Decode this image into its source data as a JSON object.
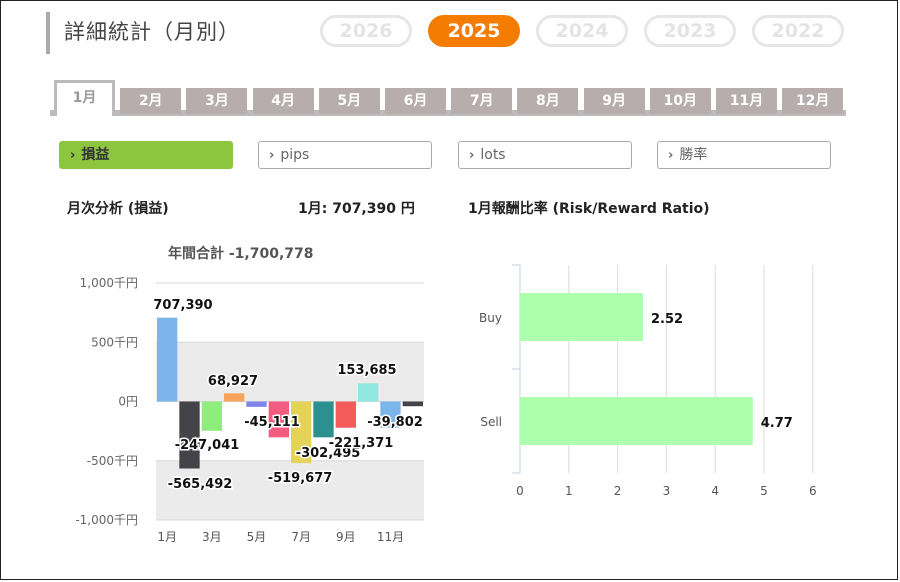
{
  "page": {
    "title": "詳細統計（月別）"
  },
  "years": [
    {
      "label": "2026",
      "active": false
    },
    {
      "label": "2025",
      "active": true
    },
    {
      "label": "2024",
      "active": false
    },
    {
      "label": "2023",
      "active": false
    },
    {
      "label": "2022",
      "active": false
    }
  ],
  "months": [
    "1月",
    "2月",
    "3月",
    "4月",
    "5月",
    "6月",
    "7月",
    "8月",
    "9月",
    "10月",
    "11月",
    "12月"
  ],
  "active_month": "1月",
  "filters": [
    {
      "label": "損益",
      "active": true
    },
    {
      "label": "pips",
      "active": false
    },
    {
      "label": "lots",
      "active": false
    },
    {
      "label": "勝率",
      "active": false
    }
  ],
  "left_panel": {
    "heading": "月次分析 (損益)",
    "month_summary": "1月:  707,390 円"
  },
  "right_panel": {
    "heading": "1月報酬比率 (Risk/Reward Ratio)"
  },
  "colors": {
    "accent": "#f47c00",
    "filter_active": "#8cc63f",
    "rr_bar": "#adffad"
  },
  "chart_data": [
    {
      "type": "bar",
      "title": "年間合計 -1,700,778",
      "categories": [
        "1月",
        "2月",
        "3月",
        "4月",
        "5月",
        "6月",
        "7月",
        "8月",
        "9月",
        "10月",
        "11月",
        "12月"
      ],
      "x_tick_labels": [
        "1月",
        "3月",
        "5月",
        "7月",
        "9月",
        "11月"
      ],
      "values": [
        707390,
        -565492,
        -247041,
        68927,
        -45111,
        -302495,
        -519677,
        -302495,
        -221371,
        153685,
        -221371,
        -39802
      ],
      "value_labels": [
        "707,390",
        "-565,492",
        "-247,041",
        "68,927",
        "-45,111",
        "",
        "-519,677",
        "-302,495",
        "-221,371",
        "153,685",
        "",
        "-39,802"
      ],
      "bar_colors": [
        "#7cb5ec",
        "#434348",
        "#90ed7d",
        "#f7a35c",
        "#8085e9",
        "#f15c80",
        "#e4d354",
        "#2b908f",
        "#f45b5b",
        "#91e8e1",
        "#7cb5ec",
        "#434348"
      ],
      "ylim": [
        -1000000,
        1000000
      ],
      "y_ticks": [
        1000000,
        500000,
        0,
        -500000,
        -1000000
      ],
      "y_tick_labels": [
        "1,000千円",
        "500千円",
        "0円",
        "-500千円",
        "-1,000千円"
      ],
      "grid": true
    },
    {
      "type": "bar",
      "orientation": "horizontal",
      "categories": [
        "Buy",
        "Sell"
      ],
      "values": [
        2.52,
        4.77
      ],
      "value_labels": [
        "2.52",
        "4.77"
      ],
      "xlim": [
        0,
        6
      ],
      "x_ticks": [
        "0",
        "1",
        "2",
        "3",
        "4",
        "5",
        "6"
      ],
      "grid": true
    }
  ]
}
